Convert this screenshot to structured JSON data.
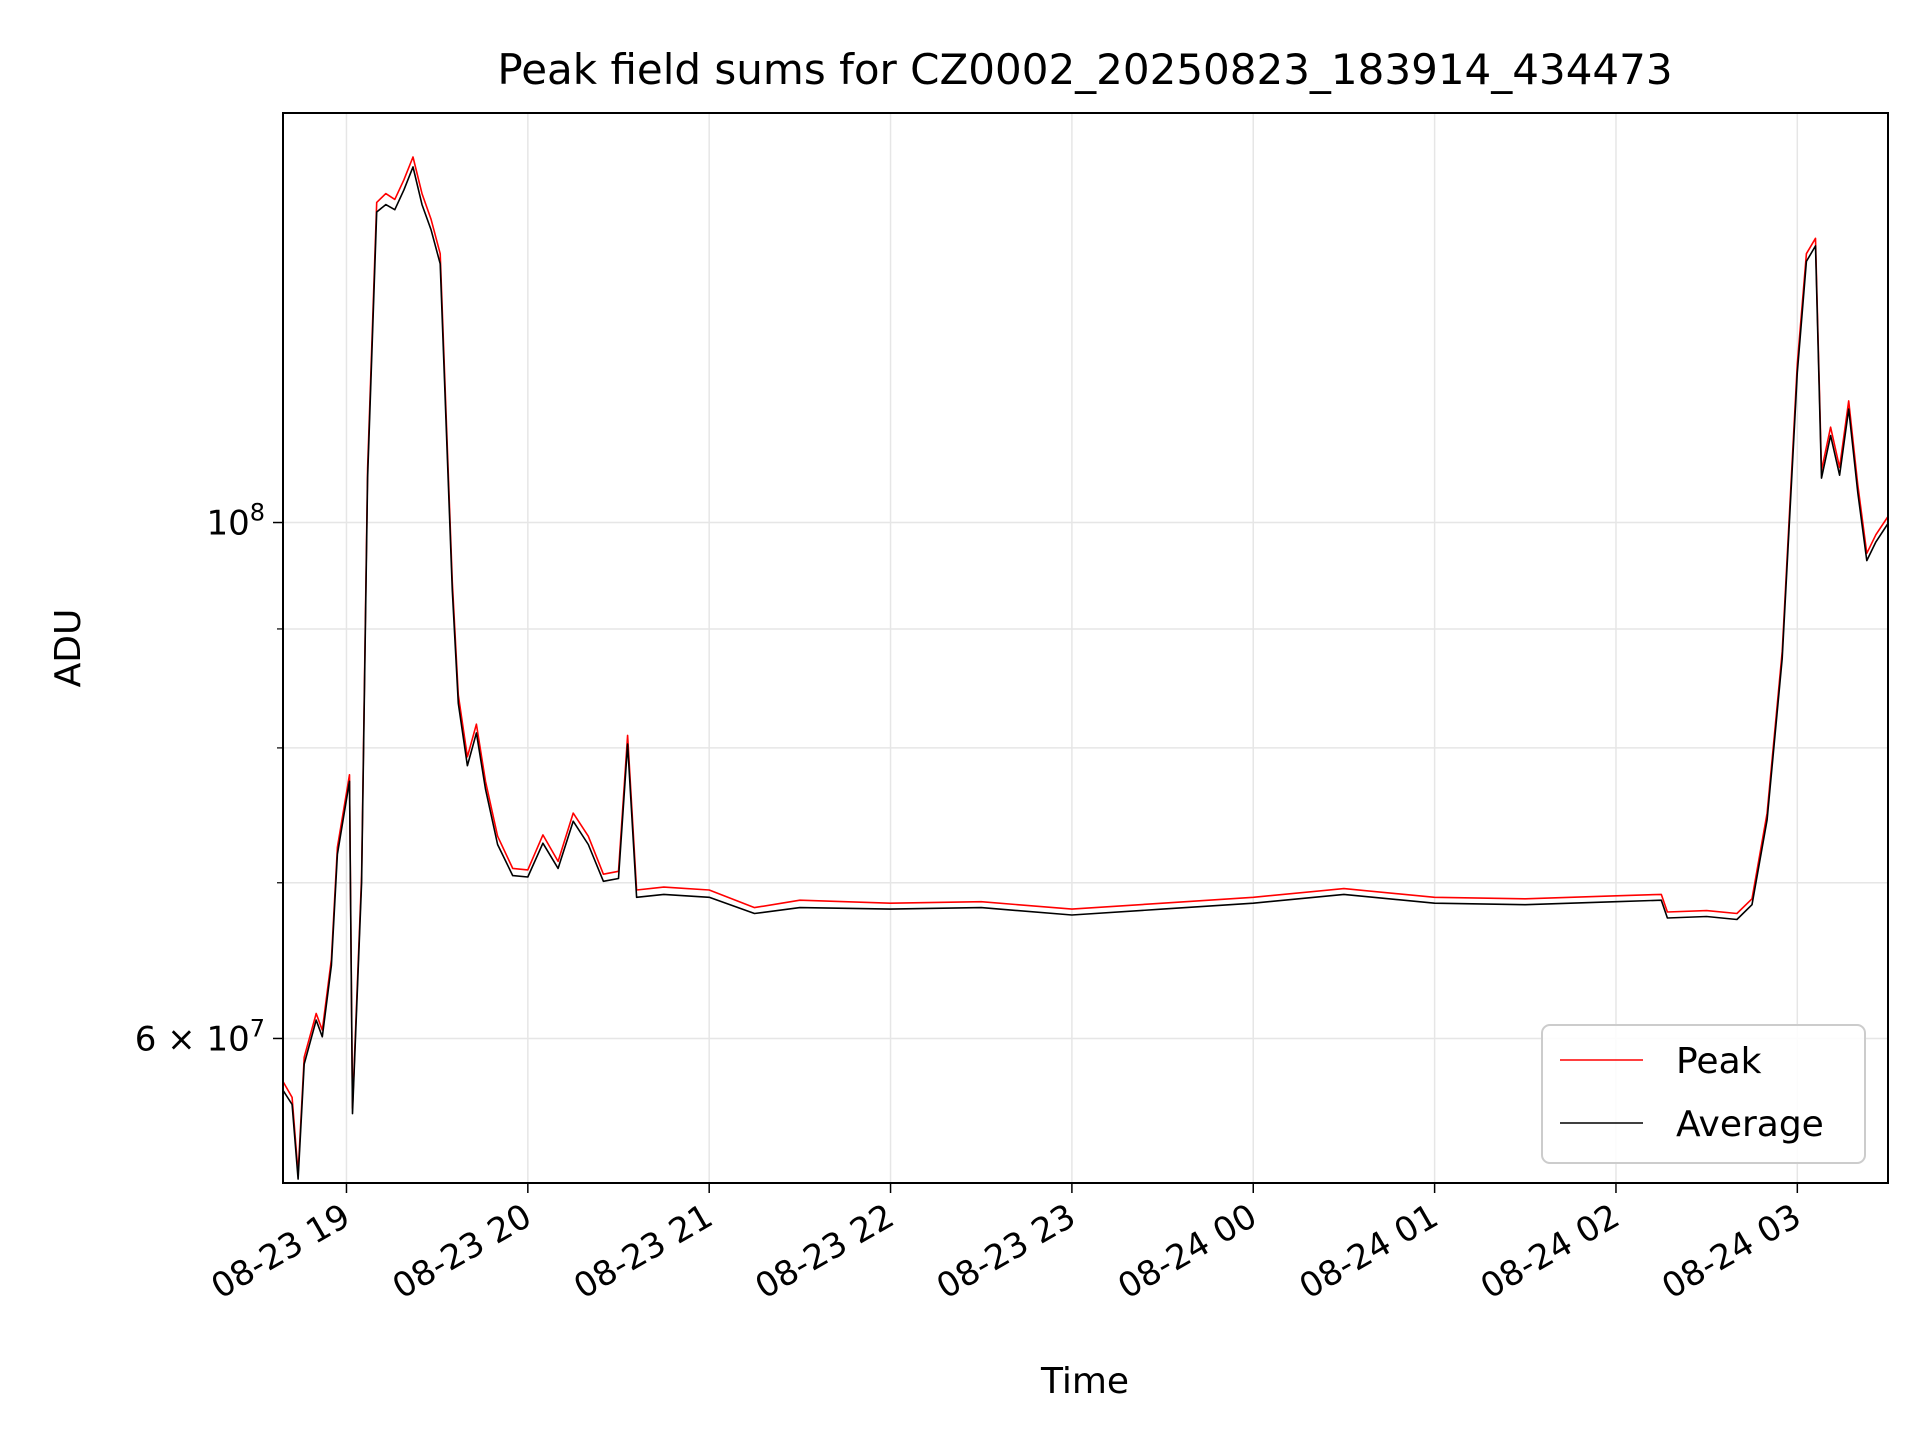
{
  "chart_data": {
    "type": "line",
    "title": "Peak field sums for CZ0002_20250823_183914_434473",
    "xlabel": "Time",
    "ylabel": "ADU",
    "x_axis": "datetime",
    "xlim": [
      "2025-08-23 18:39",
      "2025-08-24 03:30"
    ],
    "ylim": [
      52000000,
      150000000
    ],
    "yscale": "log",
    "grid": true,
    "legend_position": "lower-right",
    "x_tick_labels": [
      {
        "time": "2025-08-23 19:00",
        "label": "08-23 19"
      },
      {
        "time": "2025-08-23 20:00",
        "label": "08-23 20"
      },
      {
        "time": "2025-08-23 21:00",
        "label": "08-23 21"
      },
      {
        "time": "2025-08-23 22:00",
        "label": "08-23 22"
      },
      {
        "time": "2025-08-23 23:00",
        "label": "08-23 23"
      },
      {
        "time": "2025-08-24 00:00",
        "label": "08-24 00"
      },
      {
        "time": "2025-08-24 01:00",
        "label": "08-24 01"
      },
      {
        "time": "2025-08-24 02:00",
        "label": "08-24 02"
      },
      {
        "time": "2025-08-24 03:00",
        "label": "08-24 03"
      }
    ],
    "y_major_ticks": [
      {
        "value": 60000000,
        "base": "6 × 10",
        "exp": "7"
      },
      {
        "value": 100000000,
        "base": "10",
        "exp": "8"
      }
    ],
    "y_minor_ticks": [
      70000000,
      80000000,
      90000000
    ],
    "series": [
      {
        "name": "Peak",
        "color": "#ff0000",
        "points": [
          [
            "2025-08-23 18:39",
            57500000
          ],
          [
            "2025-08-23 18:42",
            56600000
          ],
          [
            "2025-08-23 18:44",
            52500000
          ],
          [
            "2025-08-23 18:46",
            58900000
          ],
          [
            "2025-08-23 18:50",
            61500000
          ],
          [
            "2025-08-23 18:52",
            60500000
          ],
          [
            "2025-08-23 18:55",
            64900000
          ],
          [
            "2025-08-23 18:57",
            72500000
          ],
          [
            "2025-08-23 19:01",
            77900000
          ],
          [
            "2025-08-23 19:02",
            56000000
          ],
          [
            "2025-08-23 19:05",
            70500000
          ],
          [
            "2025-08-23 19:07",
            105500000
          ],
          [
            "2025-08-23 19:10",
            137300000
          ],
          [
            "2025-08-23 19:13",
            138500000
          ],
          [
            "2025-08-23 19:16",
            137700000
          ],
          [
            "2025-08-23 19:19",
            140400000
          ],
          [
            "2025-08-23 19:22",
            143600000
          ],
          [
            "2025-08-23 19:25",
            138500000
          ],
          [
            "2025-08-23 19:28",
            135000000
          ],
          [
            "2025-08-23 19:31",
            130500000
          ],
          [
            "2025-08-23 19:33",
            111000000
          ],
          [
            "2025-08-23 19:35",
            94300000
          ],
          [
            "2025-08-23 19:37",
            84300000
          ],
          [
            "2025-08-23 19:40",
            79300000
          ],
          [
            "2025-08-23 19:43",
            81900000
          ],
          [
            "2025-08-23 19:46",
            77400000
          ],
          [
            "2025-08-23 19:50",
            73300000
          ],
          [
            "2025-08-23 19:55",
            71000000
          ],
          [
            "2025-08-23 20:00",
            70900000
          ],
          [
            "2025-08-23 20:05",
            73400000
          ],
          [
            "2025-08-23 20:10",
            71500000
          ],
          [
            "2025-08-23 20:15",
            75000000
          ],
          [
            "2025-08-23 20:20",
            73300000
          ],
          [
            "2025-08-23 20:25",
            70600000
          ],
          [
            "2025-08-23 20:30",
            70800000
          ],
          [
            "2025-08-23 20:33",
            81000000
          ],
          [
            "2025-08-23 20:36",
            69500000
          ],
          [
            "2025-08-23 20:45",
            69700000
          ],
          [
            "2025-08-23 21:00",
            69500000
          ],
          [
            "2025-08-23 21:15",
            68300000
          ],
          [
            "2025-08-23 21:30",
            68800000
          ],
          [
            "2025-08-23 22:00",
            68600000
          ],
          [
            "2025-08-23 22:30",
            68700000
          ],
          [
            "2025-08-23 23:00",
            68200000
          ],
          [
            "2025-08-23 23:30",
            68600000
          ],
          [
            "2025-08-24 00:00",
            69000000
          ],
          [
            "2025-08-24 00:30",
            69600000
          ],
          [
            "2025-08-24 01:00",
            69000000
          ],
          [
            "2025-08-24 01:30",
            68900000
          ],
          [
            "2025-08-24 02:00",
            69100000
          ],
          [
            "2025-08-24 02:15",
            69200000
          ],
          [
            "2025-08-24 02:17",
            68000000
          ],
          [
            "2025-08-24 02:30",
            68100000
          ],
          [
            "2025-08-24 02:40",
            67900000
          ],
          [
            "2025-08-24 02:45",
            68900000
          ],
          [
            "2025-08-24 02:50",
            75000000
          ],
          [
            "2025-08-24 02:55",
            88000000
          ],
          [
            "2025-08-24 03:00",
            117000000
          ],
          [
            "2025-08-24 03:03",
            130500000
          ],
          [
            "2025-08-24 03:06",
            132500000
          ],
          [
            "2025-08-24 03:08",
            105300000
          ],
          [
            "2025-08-24 03:11",
            109900000
          ],
          [
            "2025-08-24 03:14",
            105600000
          ],
          [
            "2025-08-24 03:17",
            112800000
          ],
          [
            "2025-08-24 03:20",
            103800000
          ],
          [
            "2025-08-24 03:23",
            97000000
          ],
          [
            "2025-08-24 03:26",
            98800000
          ],
          [
            "2025-08-24 03:30",
            100600000
          ]
        ]
      },
      {
        "name": "Average",
        "color": "#000000",
        "points": [
          [
            "2025-08-23 18:39",
            57000000
          ],
          [
            "2025-08-23 18:42",
            56200000
          ],
          [
            "2025-08-23 18:44",
            52200000
          ],
          [
            "2025-08-23 18:46",
            58500000
          ],
          [
            "2025-08-23 18:50",
            61100000
          ],
          [
            "2025-08-23 18:52",
            60100000
          ],
          [
            "2025-08-23 18:55",
            64500000
          ],
          [
            "2025-08-23 18:57",
            72000000
          ],
          [
            "2025-08-23 19:01",
            77400000
          ],
          [
            "2025-08-23 19:02",
            55700000
          ],
          [
            "2025-08-23 19:05",
            70000000
          ],
          [
            "2025-08-23 19:07",
            104500000
          ],
          [
            "2025-08-23 19:10",
            136000000
          ],
          [
            "2025-08-23 19:13",
            137000000
          ],
          [
            "2025-08-23 19:16",
            136300000
          ],
          [
            "2025-08-23 19:19",
            139000000
          ],
          [
            "2025-08-23 19:22",
            142200000
          ],
          [
            "2025-08-23 19:25",
            137000000
          ],
          [
            "2025-08-23 19:28",
            133600000
          ],
          [
            "2025-08-23 19:31",
            129200000
          ],
          [
            "2025-08-23 19:33",
            110000000
          ],
          [
            "2025-08-23 19:35",
            93500000
          ],
          [
            "2025-08-23 19:37",
            83600000
          ],
          [
            "2025-08-23 19:40",
            78600000
          ],
          [
            "2025-08-23 19:43",
            81200000
          ],
          [
            "2025-08-23 19:46",
            76800000
          ],
          [
            "2025-08-23 19:50",
            72700000
          ],
          [
            "2025-08-23 19:55",
            70500000
          ],
          [
            "2025-08-23 20:00",
            70400000
          ],
          [
            "2025-08-23 20:05",
            72800000
          ],
          [
            "2025-08-23 20:10",
            71000000
          ],
          [
            "2025-08-23 20:15",
            74400000
          ],
          [
            "2025-08-23 20:20",
            72700000
          ],
          [
            "2025-08-23 20:25",
            70100000
          ],
          [
            "2025-08-23 20:30",
            70300000
          ],
          [
            "2025-08-23 20:33",
            80300000
          ],
          [
            "2025-08-23 20:36",
            69000000
          ],
          [
            "2025-08-23 20:45",
            69200000
          ],
          [
            "2025-08-23 21:00",
            69000000
          ],
          [
            "2025-08-23 21:15",
            67900000
          ],
          [
            "2025-08-23 21:30",
            68300000
          ],
          [
            "2025-08-23 22:00",
            68200000
          ],
          [
            "2025-08-23 22:30",
            68300000
          ],
          [
            "2025-08-23 23:00",
            67800000
          ],
          [
            "2025-08-23 23:30",
            68200000
          ],
          [
            "2025-08-24 00:00",
            68600000
          ],
          [
            "2025-08-24 00:30",
            69200000
          ],
          [
            "2025-08-24 01:00",
            68600000
          ],
          [
            "2025-08-24 01:30",
            68500000
          ],
          [
            "2025-08-24 02:00",
            68700000
          ],
          [
            "2025-08-24 02:15",
            68800000
          ],
          [
            "2025-08-24 02:17",
            67600000
          ],
          [
            "2025-08-24 02:30",
            67700000
          ],
          [
            "2025-08-24 02:40",
            67500000
          ],
          [
            "2025-08-24 02:45",
            68500000
          ],
          [
            "2025-08-24 02:50",
            74500000
          ],
          [
            "2025-08-24 02:55",
            87400000
          ],
          [
            "2025-08-24 03:00",
            116000000
          ],
          [
            "2025-08-24 03:03",
            129500000
          ],
          [
            "2025-08-24 03:06",
            131500000
          ],
          [
            "2025-08-24 03:08",
            104500000
          ],
          [
            "2025-08-24 03:11",
            109000000
          ],
          [
            "2025-08-24 03:14",
            104800000
          ],
          [
            "2025-08-24 03:17",
            111900000
          ],
          [
            "2025-08-24 03:20",
            103000000
          ],
          [
            "2025-08-24 03:23",
            96300000
          ],
          [
            "2025-08-24 03:26",
            98100000
          ],
          [
            "2025-08-24 03:30",
            99900000
          ]
        ]
      }
    ]
  }
}
